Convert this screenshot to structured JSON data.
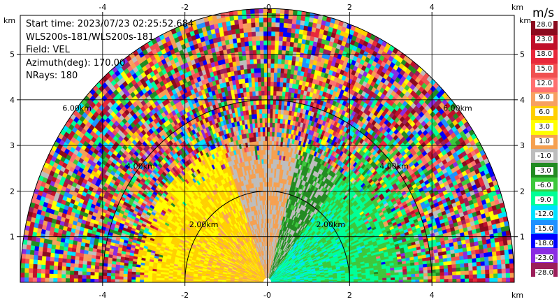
{
  "info": {
    "start_time": "Start time: 2023/07/23 02:25:52.684",
    "instrument": "WLS200s-181/WLS200s-181",
    "field": "Field: VEL",
    "azimuth": "Azimuth(deg): 170.00",
    "nrays": "NRays: 180"
  },
  "axes": {
    "x_unit": "km",
    "y_unit": "km",
    "x_ticks": [
      "-4",
      "-2",
      "-0",
      "2",
      "4"
    ],
    "x_tick_values": [
      -4,
      -2,
      0,
      2,
      4
    ],
    "y_ticks": [
      "1",
      "2",
      "3",
      "4",
      "5"
    ],
    "y_tick_values": [
      1,
      2,
      3,
      4,
      5
    ],
    "xlim": [
      -6.0,
      6.0
    ],
    "ylim": [
      0.0,
      5.85
    ]
  },
  "range_rings": [
    {
      "radius_km": 2.0,
      "label": "2.00km"
    },
    {
      "radius_km": 4.0,
      "label": "4.00km"
    },
    {
      "radius_km": 6.0,
      "label": "6.00km"
    }
  ],
  "colorbar": {
    "title": "m/s",
    "labels": [
      "28.0",
      "23.0",
      "18.0",
      "15.0",
      "12.0",
      "9.0",
      "6.0",
      "3.0",
      "1.0",
      "-1.0",
      "-3.0",
      "-6.0",
      "-9.0",
      "-12.0",
      "-15.0",
      "-18.0",
      "-23.0",
      "-28.0"
    ],
    "colors": [
      "#8b0a1e",
      "#c0102a",
      "#e8283a",
      "#f05050",
      "#ff7070",
      "#f7a060",
      "#ffd000",
      "#ffff00",
      "#f5a050",
      "#bdbdbd",
      "#228b22",
      "#3cc83c",
      "#00ff96",
      "#00e0ff",
      "#1e90ff",
      "#0000ff",
      "#8a2be2",
      "#9b1e5a"
    ]
  },
  "chart_data": {
    "type": "heatmap",
    "field": "VEL",
    "units": "m/s",
    "azimuth_deg": 170.0,
    "nrays": 180,
    "max_range_km": 6.0,
    "value_range": [
      -28.0,
      28.0
    ],
    "regions": [
      {
        "elev_from_deg": 0,
        "elev_to_deg": 52,
        "range_to_km": 4.3,
        "velocity_ms": -10
      },
      {
        "elev_from_deg": 52,
        "elev_to_deg": 75,
        "range_to_km": 3.0,
        "velocity_ms": -4
      },
      {
        "elev_from_deg": 75,
        "elev_to_deg": 110,
        "range_to_km": 3.2,
        "velocity_ms": 0
      },
      {
        "elev_from_deg": 110,
        "elev_to_deg": 180,
        "range_to_km": 3.2,
        "velocity_ms": 7
      }
    ],
    "noise_beyond_km": 3.2
  }
}
